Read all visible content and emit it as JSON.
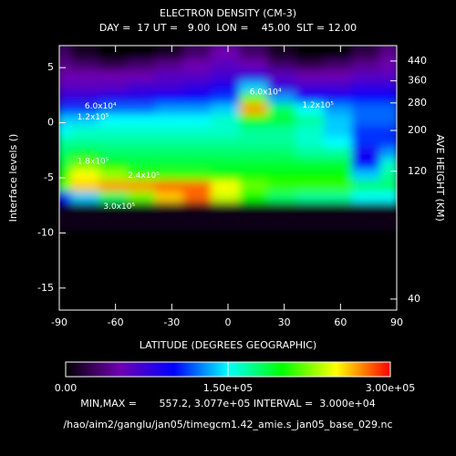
{
  "chart_data": {
    "type": "contour",
    "title": "ELECTRON DENSITY (CM-3)",
    "subtitle": "DAY =  17 UT =   9.00  LON =    45.00  SLT = 12.00",
    "xlabel": "LATITUDE (DEGREES GEOGRAPHIC)",
    "ylabel": "Interface levels ()",
    "y2label": "AVE HEIGHT (KM)",
    "x": [
      -90,
      -75,
      -60,
      -45,
      -30,
      -15,
      0,
      15,
      30,
      45,
      60,
      75,
      90
    ],
    "y": [
      6,
      5,
      4,
      3,
      2,
      1,
      0,
      -1,
      -2,
      -3,
      -4,
      -5,
      -6,
      -7,
      -8,
      -12,
      -16
    ],
    "values": [
      [
        30000,
        10000,
        0,
        0,
        10000,
        30000,
        50000,
        30000,
        10000,
        0,
        0,
        20000,
        40000
      ],
      [
        40000,
        30000,
        20000,
        30000,
        40000,
        50000,
        60000,
        50000,
        30000,
        20000,
        30000,
        40000,
        50000
      ],
      [
        50000,
        50000,
        50000,
        50000,
        60000,
        60000,
        70000,
        80000,
        60000,
        50000,
        50000,
        60000,
        60000
      ],
      [
        60000,
        60000,
        60000,
        70000,
        70000,
        80000,
        90000,
        140000,
        80000,
        70000,
        70000,
        80000,
        80000
      ],
      [
        80000,
        80000,
        90000,
        90000,
        100000,
        100000,
        110000,
        220000,
        130000,
        100000,
        100000,
        100000,
        100000
      ],
      [
        110000,
        110000,
        120000,
        120000,
        130000,
        130000,
        140000,
        270000,
        180000,
        150000,
        130000,
        120000,
        120000
      ],
      [
        140000,
        140000,
        150000,
        150000,
        150000,
        150000,
        160000,
        200000,
        190000,
        170000,
        140000,
        120000,
        120000
      ],
      [
        150000,
        160000,
        160000,
        160000,
        160000,
        160000,
        160000,
        170000,
        170000,
        160000,
        140000,
        110000,
        110000
      ],
      [
        170000,
        170000,
        170000,
        170000,
        170000,
        170000,
        170000,
        170000,
        170000,
        160000,
        150000,
        110000,
        110000
      ],
      [
        180000,
        190000,
        180000,
        180000,
        180000,
        180000,
        180000,
        180000,
        180000,
        170000,
        170000,
        90000,
        130000
      ],
      [
        190000,
        220000,
        200000,
        190000,
        190000,
        190000,
        190000,
        190000,
        190000,
        190000,
        190000,
        100000,
        160000
      ],
      [
        200000,
        250000,
        230000,
        210000,
        210000,
        210000,
        200000,
        200000,
        200000,
        200000,
        200000,
        140000,
        170000
      ],
      [
        220000,
        260000,
        270000,
        270000,
        280000,
        280000,
        250000,
        220000,
        210000,
        210000,
        210000,
        180000,
        180000
      ],
      [
        100000,
        140000,
        180000,
        220000,
        260000,
        280000,
        240000,
        200000,
        180000,
        170000,
        170000,
        150000,
        150000
      ],
      [
        5000,
        5000,
        5000,
        5000,
        5000,
        5000,
        5000,
        5000,
        5000,
        5000,
        5000,
        5000,
        5000
      ],
      [
        1000,
        1000,
        1000,
        1000,
        1000,
        1000,
        1000,
        1000,
        1000,
        1000,
        1000,
        1000,
        1000
      ],
      [
        1000,
        1000,
        1000,
        1000,
        1000,
        1000,
        1000,
        1000,
        1000,
        1000,
        1000,
        1000,
        1000
      ]
    ],
    "xlim": [
      -90,
      90
    ],
    "ylim": [
      -17,
      7
    ],
    "xticks": [
      -90,
      -60,
      -30,
      0,
      30,
      60,
      90
    ],
    "yticks": [
      5,
      0,
      -5,
      -10,
      -15
    ],
    "height_ticks": [
      {
        "level": 5.6,
        "height": 440
      },
      {
        "level": 3.8,
        "height": 360
      },
      {
        "level": 1.8,
        "height": 280
      },
      {
        "level": -0.7,
        "height": 200
      },
      {
        "level": -4.4,
        "height": 120
      },
      {
        "level": -16,
        "height": 40
      }
    ],
    "colormap": [
      "#000000",
      "#7000b0",
      "#0000ff",
      "#00ffff",
      "#00ff00",
      "#ffff00",
      "#ff0000"
    ],
    "clim": [
      0,
      300000
    ],
    "cticks": [
      {
        "value": 0,
        "label": "0.00"
      },
      {
        "value": 150000,
        "label": "1.50e+05"
      },
      {
        "value": 300000,
        "label": "3.00e+05"
      }
    ],
    "annotations": [
      {
        "text": "6.0x10⁴",
        "x": -68,
        "y": 1.5
      },
      {
        "text": "1.2x10⁵",
        "x": -72,
        "y": 0.5
      },
      {
        "text": "1.8x10⁵",
        "x": -72,
        "y": -3.5
      },
      {
        "text": "2.4x10⁵",
        "x": -45,
        "y": -4.8
      },
      {
        "text": "3.0x10⁵",
        "x": -58,
        "y": -7.6
      },
      {
        "text": "6.0x10⁴",
        "x": 20,
        "y": 2.8
      },
      {
        "text": "1.2x10⁵",
        "x": 48,
        "y": 1.6
      }
    ],
    "footer": "MIN,MAX =       557.2, 3.077e+05 INTERVAL =  3.000e+04",
    "file": "/hao/aim2/ganglu/jan05/timegcm1.42_amie.s_jan05_base_029.nc"
  }
}
